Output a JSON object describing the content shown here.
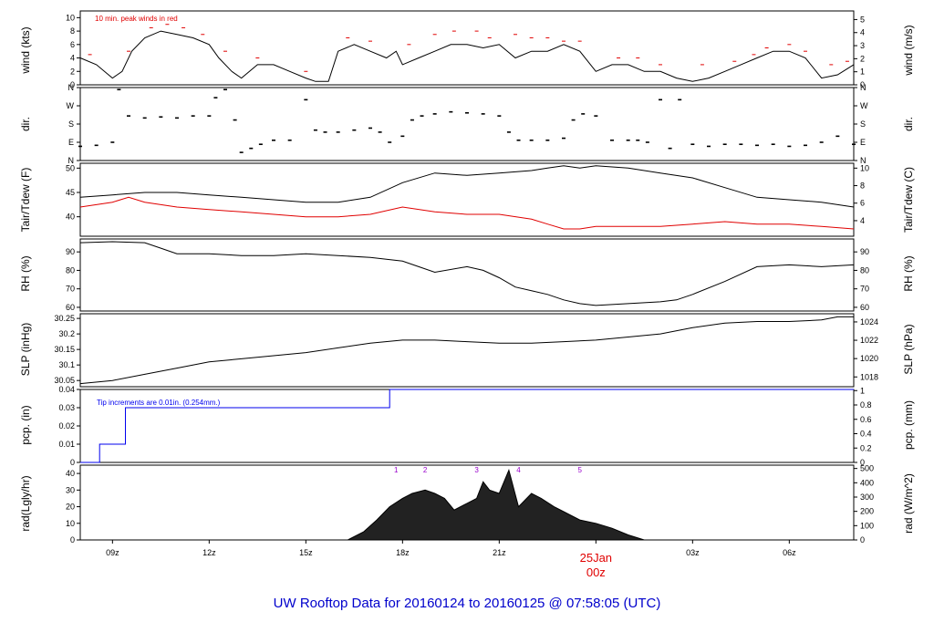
{
  "title": "UW Rooftop Data for 20160124  to  20160125 @ 07:58:05  (UTC)",
  "time_axis": {
    "start_hour": 8,
    "end_hour": 32,
    "ticks": [
      {
        "hour": 9,
        "label": "09z"
      },
      {
        "hour": 12,
        "label": "12z"
      },
      {
        "hour": 15,
        "label": "15z"
      },
      {
        "hour": 18,
        "label": "18z"
      },
      {
        "hour": 21,
        "label": "21z"
      },
      {
        "hour": 24,
        "label": "25Jan"
      },
      {
        "hour": 27,
        "label": "03z"
      },
      {
        "hour": 30,
        "label": "06z"
      }
    ],
    "date_label": "25Jan",
    "date_sub": "00z"
  },
  "colors": {
    "title": "#0000cc",
    "date": "#e00000",
    "tdew": "#e00000",
    "gust": "#e00000",
    "precip": "#0000ee",
    "marker": "#9900cc",
    "line": "#000000"
  },
  "chart_data": [
    {
      "id": "wind",
      "type": "line",
      "ylabel": "wind (kts)",
      "ylabel_right": "wind (m/s)",
      "ylim": [
        0,
        11
      ],
      "yticks": [
        0,
        2,
        4,
        6,
        8,
        10
      ],
      "right_ticks": [
        0,
        1,
        2,
        3,
        4,
        5
      ],
      "right_factor": 0.5144,
      "annotation": "10 min. peak winds in red",
      "x": [
        8.0,
        8.5,
        9.0,
        9.3,
        9.6,
        10.0,
        10.5,
        11.0,
        11.5,
        12.0,
        12.3,
        12.7,
        13.0,
        13.5,
        14.0,
        14.5,
        15.0,
        15.3,
        15.7,
        16.0,
        16.5,
        17.0,
        17.5,
        17.8,
        18.0,
        18.5,
        19.0,
        19.5,
        20.0,
        20.5,
        21.0,
        21.5,
        22.0,
        22.5,
        23.0,
        23.5,
        24.0,
        24.5,
        25.0,
        25.5,
        26.0,
        26.5,
        27.0,
        27.5,
        28.0,
        28.5,
        29.0,
        29.5,
        30.0,
        30.5,
        31.0,
        31.5,
        32.0
      ],
      "y": [
        4,
        3,
        1,
        2,
        5,
        7,
        8,
        7.5,
        7,
        6,
        4,
        2,
        1,
        3,
        3,
        2,
        1,
        0.5,
        0.5,
        5,
        6,
        5,
        4,
        5,
        3,
        4,
        5,
        6,
        6,
        5.5,
        6,
        4,
        5,
        5,
        6,
        5,
        2,
        3,
        3,
        2,
        2,
        1,
        0.5,
        1,
        2,
        3,
        4,
        5,
        5,
        4,
        1,
        1.5,
        3
      ],
      "gust_x": [
        8.3,
        9.5,
        10.2,
        10.7,
        11.2,
        11.8,
        12.5,
        13.5,
        15.0,
        16.3,
        17.0,
        18.2,
        19.0,
        19.6,
        20.3,
        20.7,
        21.5,
        22.0,
        22.5,
        23.0,
        23.5,
        24.7,
        25.3,
        26.0,
        27.3,
        28.3,
        28.9,
        29.3,
        30.0,
        30.5,
        31.3,
        31.8
      ],
      "gust_y": [
        4.5,
        5,
        8.5,
        9,
        8.5,
        7.5,
        5,
        4,
        2,
        7,
        6.5,
        6,
        7.5,
        8,
        8,
        7,
        7.5,
        7,
        7,
        6.5,
        6.5,
        4,
        4,
        3,
        3,
        3.5,
        4.5,
        5.5,
        6,
        5,
        3,
        3.5
      ]
    },
    {
      "id": "dir",
      "type": "scatter",
      "ylabel": "dir.",
      "ylabel_right": "dir.",
      "ylim": [
        0,
        360
      ],
      "category_ticks": [
        {
          "v": 0,
          "label": "N"
        },
        {
          "v": 90,
          "label": "E"
        },
        {
          "v": 180,
          "label": "S"
        },
        {
          "v": 270,
          "label": "W"
        },
        {
          "v": 360,
          "label": "N"
        }
      ],
      "x": [
        8.0,
        8.5,
        9.0,
        9.2,
        9.5,
        10.0,
        10.5,
        11.0,
        11.5,
        12.0,
        12.2,
        12.5,
        12.8,
        13.0,
        13.3,
        13.6,
        14.0,
        14.5,
        15.0,
        15.3,
        15.6,
        16.0,
        16.5,
        17.0,
        17.3,
        17.6,
        18.0,
        18.3,
        18.6,
        19.0,
        19.5,
        20.0,
        20.5,
        21.0,
        21.3,
        21.6,
        22.0,
        22.5,
        23.0,
        23.3,
        23.6,
        24.0,
        24.5,
        25.0,
        25.3,
        25.6,
        26.0,
        26.3,
        26.6,
        27.0,
        27.5,
        28.0,
        28.5,
        29.0,
        29.5,
        30.0,
        30.5,
        31.0,
        31.5,
        32.0
      ],
      "y": [
        70,
        75,
        90,
        350,
        220,
        210,
        215,
        210,
        220,
        220,
        310,
        350,
        200,
        40,
        60,
        80,
        100,
        100,
        300,
        150,
        140,
        140,
        150,
        160,
        140,
        90,
        120,
        200,
        220,
        230,
        240,
        235,
        230,
        220,
        140,
        100,
        100,
        100,
        110,
        200,
        230,
        220,
        100,
        100,
        100,
        90,
        300,
        60,
        300,
        80,
        70,
        80,
        80,
        75,
        80,
        70,
        75,
        90,
        120,
        80
      ]
    },
    {
      "id": "temp",
      "type": "line",
      "ylabel": "Tair/Tdew (F)",
      "ylabel_right": "Tair/Tdew (C)",
      "ylim": [
        36,
        51
      ],
      "yticks": [
        40,
        45,
        50
      ],
      "right_ticks": [
        4,
        6,
        8,
        10
      ],
      "right_c_from_f": true,
      "series": [
        {
          "name": "Tair",
          "color_key": "line",
          "x": [
            8.0,
            9.0,
            10.0,
            11.0,
            12.0,
            13.0,
            14.0,
            15.0,
            16.0,
            17.0,
            18.0,
            19.0,
            20.0,
            21.0,
            22.0,
            22.5,
            23.0,
            23.5,
            24.0,
            25.0,
            26.0,
            27.0,
            28.0,
            29.0,
            30.0,
            31.0,
            32.0
          ],
          "y": [
            44,
            44.5,
            45,
            45,
            44.5,
            44,
            43.5,
            43,
            43,
            44,
            47,
            49,
            48.5,
            49,
            49.5,
            50,
            50.5,
            50,
            50.5,
            50,
            49,
            48,
            46,
            44,
            43.5,
            43,
            42
          ]
        },
        {
          "name": "Tdew",
          "color_key": "tdew",
          "x": [
            8.0,
            9.0,
            9.5,
            10.0,
            11.0,
            12.0,
            13.0,
            14.0,
            15.0,
            16.0,
            17.0,
            18.0,
            19.0,
            20.0,
            21.0,
            22.0,
            22.5,
            23.0,
            23.5,
            24.0,
            25.0,
            26.0,
            27.0,
            28.0,
            29.0,
            30.0,
            31.0,
            32.0
          ],
          "y": [
            42,
            43,
            44,
            43,
            42,
            41.5,
            41,
            40.5,
            40,
            40,
            40.5,
            42,
            41,
            40.5,
            40.5,
            39.5,
            38.5,
            37.5,
            37.5,
            38,
            38,
            38,
            38.5,
            39,
            38.5,
            38.5,
            38,
            37.5
          ]
        }
      ]
    },
    {
      "id": "rh",
      "type": "line",
      "ylabel": "RH (%)",
      "ylabel_right": "RH (%)",
      "ylim": [
        58,
        97
      ],
      "yticks": [
        60,
        70,
        80,
        90
      ],
      "right_ticks": [
        60,
        70,
        80,
        90
      ],
      "x": [
        8.0,
        9.0,
        10.0,
        10.5,
        11.0,
        12.0,
        13.0,
        14.0,
        15.0,
        16.0,
        17.0,
        18.0,
        18.5,
        19.0,
        20.0,
        20.5,
        21.0,
        21.5,
        22.0,
        22.5,
        23.0,
        23.5,
        24.0,
        25.0,
        26.0,
        26.5,
        27.0,
        28.0,
        29.0,
        30.0,
        31.0,
        32.0
      ],
      "y": [
        95,
        95.5,
        95,
        92,
        89,
        89,
        88,
        88,
        89,
        88,
        87,
        85,
        82,
        79,
        82,
        80,
        76,
        71,
        69,
        67,
        64,
        62,
        61,
        62,
        63,
        64,
        67,
        74,
        82,
        83,
        82,
        83
      ]
    },
    {
      "id": "slp",
      "type": "line",
      "ylabel": "SLP (inHg)",
      "ylabel_right": "SLP (hPa)",
      "ylim": [
        30.03,
        30.265
      ],
      "yticks": [
        30.05,
        30.1,
        30.15,
        30.2,
        30.25
      ],
      "right_ticks": [
        1018,
        1020,
        1022,
        1024
      ],
      "right_hpa_from_inhg": true,
      "x": [
        8.0,
        9.0,
        10.0,
        11.0,
        12.0,
        13.0,
        14.0,
        15.0,
        16.0,
        17.0,
        18.0,
        19.0,
        20.0,
        21.0,
        22.0,
        23.0,
        24.0,
        25.0,
        26.0,
        27.0,
        28.0,
        29.0,
        30.0,
        31.0,
        31.5,
        32.0
      ],
      "y": [
        30.04,
        30.05,
        30.07,
        30.09,
        30.11,
        30.12,
        30.13,
        30.14,
        30.155,
        30.17,
        30.18,
        30.18,
        30.175,
        30.17,
        30.17,
        30.175,
        30.18,
        30.19,
        30.2,
        30.22,
        30.235,
        30.24,
        30.24,
        30.245,
        30.255,
        30.255
      ]
    },
    {
      "id": "pcp",
      "type": "line",
      "ylabel": "pcp. (in)",
      "ylabel_right": "pcp. (mm)",
      "ylim": [
        0,
        0.04
      ],
      "yticks": [
        0,
        0.01,
        0.02,
        0.03,
        0.04
      ],
      "right_ticks": [
        0,
        0.2,
        0.4,
        0.6,
        0.8,
        1
      ],
      "right_factor": 25.4,
      "annotation": "Tip increments are 0.01in. (0.254mm.)",
      "x": [
        8.0,
        8.6,
        8.6,
        9.4,
        9.4,
        17.6,
        17.6,
        32.0
      ],
      "y": [
        0,
        0,
        0.01,
        0.01,
        0.03,
        0.03,
        0.04,
        0.04
      ]
    },
    {
      "id": "rad",
      "type": "area",
      "ylabel": "rad(Lgly/hr)",
      "ylabel_right": "rad (W/m^2)",
      "ylim": [
        0,
        45
      ],
      "yticks": [
        0,
        10,
        20,
        30,
        40
      ],
      "right_ticks": [
        0,
        100,
        200,
        300,
        400,
        500
      ],
      "right_factor": 11.63,
      "markers": [
        {
          "x": 17.8,
          "label": "1"
        },
        {
          "x": 18.7,
          "label": "2"
        },
        {
          "x": 20.3,
          "label": "3"
        },
        {
          "x": 21.6,
          "label": "4"
        },
        {
          "x": 23.5,
          "label": "5"
        }
      ],
      "x": [
        16.3,
        16.8,
        17.2,
        17.6,
        18.0,
        18.3,
        18.7,
        19.0,
        19.3,
        19.6,
        20.0,
        20.3,
        20.5,
        20.7,
        21.0,
        21.3,
        21.6,
        22.0,
        22.3,
        22.7,
        23.0,
        23.5,
        24.0,
        24.5,
        25.0,
        25.5
      ],
      "y": [
        0,
        5,
        12,
        20,
        25,
        28,
        30,
        28,
        25,
        18,
        22,
        25,
        35,
        30,
        28,
        42,
        20,
        28,
        25,
        20,
        17,
        12,
        10,
        7,
        3,
        0
      ]
    }
  ]
}
